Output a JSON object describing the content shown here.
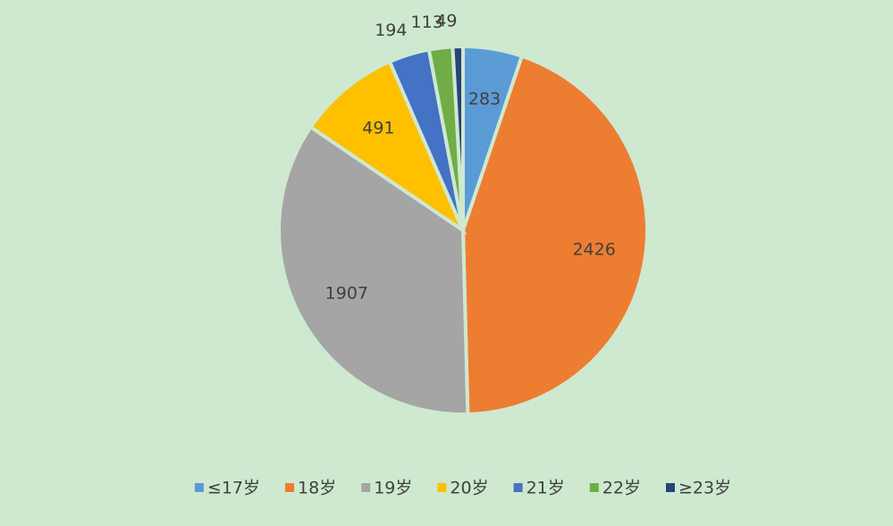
{
  "chart_data": {
    "type": "pie",
    "categories": [
      "≤17岁",
      "18岁",
      "19岁",
      "20岁",
      "21岁",
      "22岁",
      "≥23岁"
    ],
    "values": [
      283,
      2426,
      1907,
      491,
      194,
      113,
      49
    ],
    "colors": [
      "#5b9bd5",
      "#ed7d31",
      "#a5a5a5",
      "#ffc000",
      "#4472c4",
      "#70ad47",
      "#264478"
    ],
    "legend": "bottom"
  }
}
